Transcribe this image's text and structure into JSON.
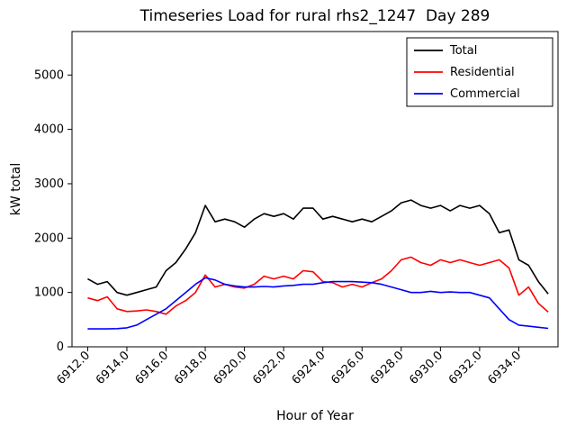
{
  "title": "Timeseries Load for rural rhs2_1247  Day 289",
  "chart_data": {
    "type": "line",
    "title": "Timeseries Load for rural rhs2_1247  Day 289",
    "xlabel": "Hour of Year",
    "ylabel": "kW total",
    "xlim": [
      6911.2,
      6936.0
    ],
    "ylim": [
      0,
      5800
    ],
    "grid": false,
    "legend_position": "upper right",
    "x_tick_labels": [
      "6912.0",
      "6914.0",
      "6916.0",
      "6918.0",
      "6920.0",
      "6922.0",
      "6924.0",
      "6926.0",
      "6928.0",
      "6930.0",
      "6932.0",
      "6934.0"
    ],
    "x_tick_values": [
      6912,
      6914,
      6916,
      6918,
      6920,
      6922,
      6924,
      6926,
      6928,
      6930,
      6932,
      6934
    ],
    "y_tick_labels": [
      "0",
      "1000",
      "2000",
      "3000",
      "4000",
      "5000"
    ],
    "y_tick_values": [
      0,
      1000,
      2000,
      3000,
      4000,
      5000
    ],
    "x": [
      6912.0,
      6912.5,
      6913.0,
      6913.5,
      6914.0,
      6914.5,
      6915.0,
      6915.5,
      6916.0,
      6916.5,
      6917.0,
      6917.5,
      6918.0,
      6918.5,
      6919.0,
      6919.5,
      6920.0,
      6920.5,
      6921.0,
      6921.5,
      6922.0,
      6922.5,
      6923.0,
      6923.5,
      6924.0,
      6924.5,
      6925.0,
      6925.5,
      6926.0,
      6926.5,
      6927.0,
      6927.5,
      6928.0,
      6928.5,
      6929.0,
      6929.5,
      6930.0,
      6930.5,
      6931.0,
      6931.5,
      6932.0,
      6932.5,
      6933.0,
      6933.5,
      6934.0,
      6934.5,
      6935.0,
      6935.5
    ],
    "series": [
      {
        "name": "Total",
        "color": "#000000",
        "values": [
          1250,
          1150,
          1200,
          1000,
          950,
          1000,
          1050,
          1100,
          1400,
          1550,
          1800,
          2100,
          2600,
          2300,
          2350,
          2300,
          2200,
          2350,
          2450,
          2400,
          2450,
          2350,
          2550,
          2550,
          2350,
          2400,
          2350,
          2300,
          2350,
          2300,
          2400,
          2500,
          2650,
          2700,
          2600,
          2550,
          2600,
          2500,
          2600,
          2550,
          2600,
          2450,
          2100,
          2150,
          1600,
          1500,
          1200,
          975
        ]
      },
      {
        "name": "Residential",
        "color": "#ff0000",
        "values": [
          900,
          850,
          920,
          700,
          650,
          660,
          680,
          650,
          600,
          750,
          850,
          1000,
          1320,
          1100,
          1150,
          1100,
          1080,
          1150,
          1300,
          1250,
          1300,
          1250,
          1400,
          1380,
          1200,
          1180,
          1100,
          1150,
          1100,
          1180,
          1250,
          1400,
          1600,
          1650,
          1550,
          1500,
          1600,
          1550,
          1600,
          1550,
          1500,
          1550,
          1600,
          1450,
          950,
          1100,
          800,
          640
        ]
      },
      {
        "name": "Commercial",
        "color": "#0000ff",
        "values": [
          330,
          330,
          330,
          335,
          350,
          400,
          500,
          600,
          700,
          850,
          1000,
          1150,
          1270,
          1230,
          1150,
          1120,
          1100,
          1100,
          1110,
          1100,
          1120,
          1130,
          1150,
          1150,
          1180,
          1200,
          1200,
          1200,
          1190,
          1180,
          1150,
          1100,
          1050,
          1000,
          1000,
          1020,
          1000,
          1010,
          1000,
          1000,
          950,
          900,
          700,
          500,
          400,
          380,
          360,
          340
        ]
      }
    ]
  }
}
